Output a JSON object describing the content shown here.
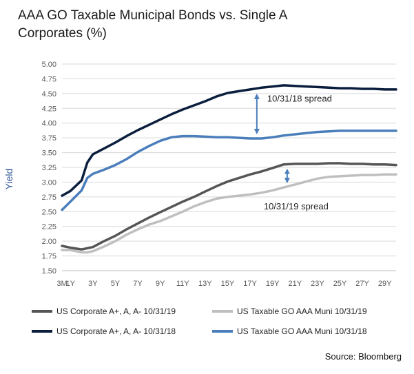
{
  "title": "AAA GO Taxable Municipal Bonds vs. Single A Corporates (%)",
  "source": "Source: Bloomberg",
  "chart_data": {
    "type": "line",
    "title": "AAA GO Taxable Municipal Bonds vs. Single A Corporates (%)",
    "xlabel": "",
    "ylabel": "Yield",
    "ylim": [
      1.5,
      5.0
    ],
    "yticks": [
      "5.00",
      "4.75",
      "4.50",
      "4.25",
      "4.00",
      "3.75",
      "3.50",
      "3.25",
      "3.00",
      "2.75",
      "2.50",
      "2.25",
      "2.00",
      "1.75",
      "1.50"
    ],
    "xticks": [
      "3M",
      "1Y",
      "3Y",
      "5Y",
      "7Y",
      "9Y",
      "11Y",
      "13Y",
      "15Y",
      "17Y",
      "19Y",
      "21Y",
      "23Y",
      "25Y",
      "27Y",
      "29Y"
    ],
    "xlim": [
      0.25,
      30
    ],
    "grid": true,
    "legend_placement": "bottom",
    "series": [
      {
        "name": "US Corporate A+, A, A-  10/31/19",
        "color": "#555555",
        "x": [
          0.25,
          1,
          2,
          3,
          4,
          5,
          6,
          7,
          8,
          9,
          10,
          11,
          12,
          13,
          14,
          15,
          16,
          17,
          18,
          19,
          20,
          21,
          22,
          23,
          24,
          25,
          26,
          27,
          28,
          29,
          30
        ],
        "y": [
          1.92,
          1.89,
          1.86,
          1.9,
          2.0,
          2.09,
          2.2,
          2.3,
          2.4,
          2.49,
          2.58,
          2.67,
          2.75,
          2.84,
          2.93,
          3.01,
          3.07,
          3.13,
          3.18,
          3.24,
          3.3,
          3.31,
          3.31,
          3.31,
          3.32,
          3.32,
          3.31,
          3.31,
          3.3,
          3.3,
          3.29
        ]
      },
      {
        "name": "US Taxable GO AAA Muni 10/31/19",
        "color": "#bfbfbf",
        "x": [
          0.25,
          1,
          2,
          2.5,
          3,
          4,
          5,
          6,
          7,
          8,
          9,
          10,
          11,
          12,
          13,
          14,
          15,
          16,
          17,
          18,
          19,
          20,
          21,
          22,
          23,
          24,
          25,
          26,
          27,
          28,
          29,
          30
        ],
        "y": [
          1.85,
          1.85,
          1.81,
          1.81,
          1.83,
          1.91,
          2.0,
          2.11,
          2.2,
          2.28,
          2.34,
          2.42,
          2.5,
          2.59,
          2.66,
          2.72,
          2.75,
          2.77,
          2.79,
          2.82,
          2.86,
          2.91,
          2.96,
          3.01,
          3.06,
          3.09,
          3.1,
          3.11,
          3.12,
          3.12,
          3.13,
          3.13
        ]
      },
      {
        "name": "US Corporate A+, A, A- 10/31/18",
        "color": "#0b1e3d",
        "x": [
          0.25,
          1,
          2,
          2.5,
          3,
          4,
          5,
          6,
          7,
          8,
          9,
          10,
          11,
          12,
          13,
          14,
          15,
          16,
          17,
          18,
          19,
          20,
          21,
          22,
          23,
          24,
          25,
          26,
          27,
          28,
          29,
          30
        ],
        "y": [
          2.77,
          2.85,
          3.03,
          3.33,
          3.47,
          3.57,
          3.67,
          3.78,
          3.88,
          3.97,
          4.06,
          4.15,
          4.23,
          4.3,
          4.37,
          4.45,
          4.51,
          4.54,
          4.57,
          4.6,
          4.62,
          4.64,
          4.63,
          4.62,
          4.61,
          4.6,
          4.59,
          4.59,
          4.58,
          4.58,
          4.57,
          4.57
        ]
      },
      {
        "name": "US Taxable GO AAA Muni 10/31/18",
        "color": "#4a7ebb",
        "x": [
          0.25,
          1,
          2,
          2.5,
          3,
          4,
          5,
          6,
          7,
          8,
          9,
          10,
          11,
          12,
          13,
          14,
          15,
          16,
          17,
          18,
          19,
          20,
          21,
          22,
          23,
          24,
          25,
          26,
          27,
          28,
          29,
          30
        ],
        "y": [
          2.53,
          2.67,
          2.86,
          3.07,
          3.14,
          3.21,
          3.29,
          3.39,
          3.51,
          3.61,
          3.7,
          3.76,
          3.78,
          3.78,
          3.77,
          3.76,
          3.76,
          3.75,
          3.74,
          3.74,
          3.76,
          3.79,
          3.81,
          3.83,
          3.85,
          3.86,
          3.87,
          3.87,
          3.87,
          3.87,
          3.87,
          3.87
        ]
      }
    ],
    "annotations": [
      {
        "text": "10/31/18 spread",
        "x": 17.6,
        "y_top": 4.57,
        "y_bottom": 3.74
      },
      {
        "text": "10/31/19 spread",
        "x": 20.3,
        "y_top": 3.3,
        "y_bottom": 2.91
      }
    ]
  }
}
